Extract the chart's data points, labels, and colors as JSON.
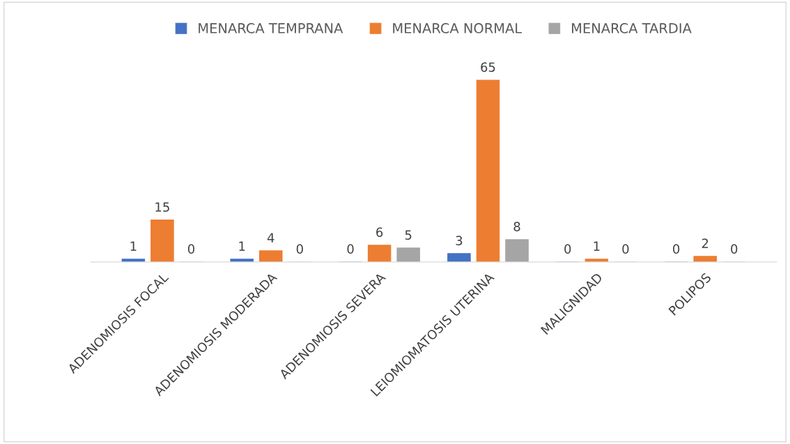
{
  "chart_data": {
    "type": "bar",
    "categories": [
      "ADENOMIOSIS FOCAL",
      "ADENOMIOSIS MODERADA",
      "ADENOMIOSIS SEVERA",
      "LEIOMIOMATOSIS UTERINA",
      "MALIGNIDAD",
      "POLIPOS"
    ],
    "series": [
      {
        "name": "MENARCA TEMPRANA",
        "color": "#4472c4",
        "values": [
          1,
          1,
          0,
          3,
          0,
          0
        ]
      },
      {
        "name": "MENARCA NORMAL",
        "color": "#ed7d31",
        "values": [
          15,
          4,
          6,
          65,
          1,
          2
        ]
      },
      {
        "name": "MENARCA TARDIA",
        "color": "#a5a5a5",
        "values": [
          0,
          0,
          5,
          8,
          0,
          0
        ]
      }
    ],
    "data_labels": true,
    "legend": "top",
    "grid": false
  }
}
